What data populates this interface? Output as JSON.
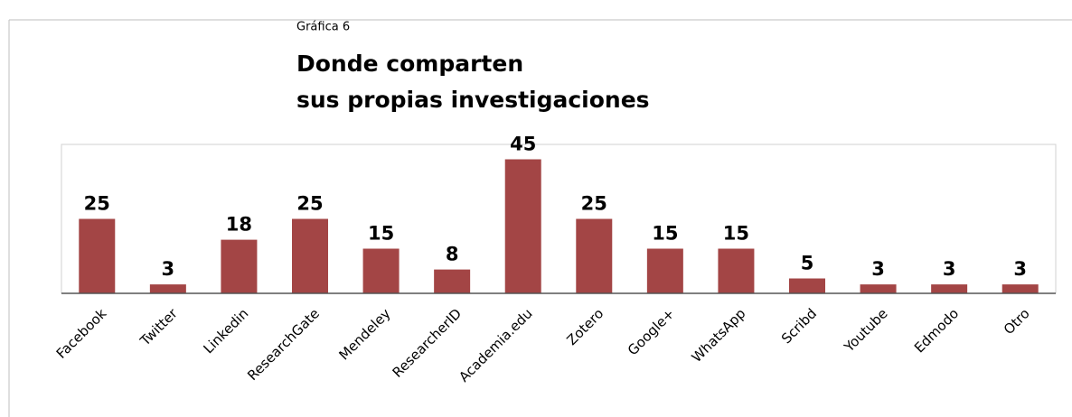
{
  "chart_data": {
    "type": "bar",
    "label": "Gráfica 6",
    "title": [
      "Donde comparten",
      "sus propias investigaciones"
    ],
    "categories": [
      "Facebook",
      "Twitter",
      "Linkedin",
      "ResearchGate",
      "Mendeley",
      "ResearcherID",
      "Academia.edu",
      "Zotero",
      "Google+",
      "WhatsApp",
      "Scribd",
      "Youtube",
      "Edmodo",
      "Otro"
    ],
    "values": [
      25,
      3,
      18,
      25,
      15,
      8,
      45,
      25,
      15,
      15,
      5,
      3,
      3,
      3
    ],
    "color": "#a34545",
    "ylim": [
      0,
      50
    ]
  }
}
